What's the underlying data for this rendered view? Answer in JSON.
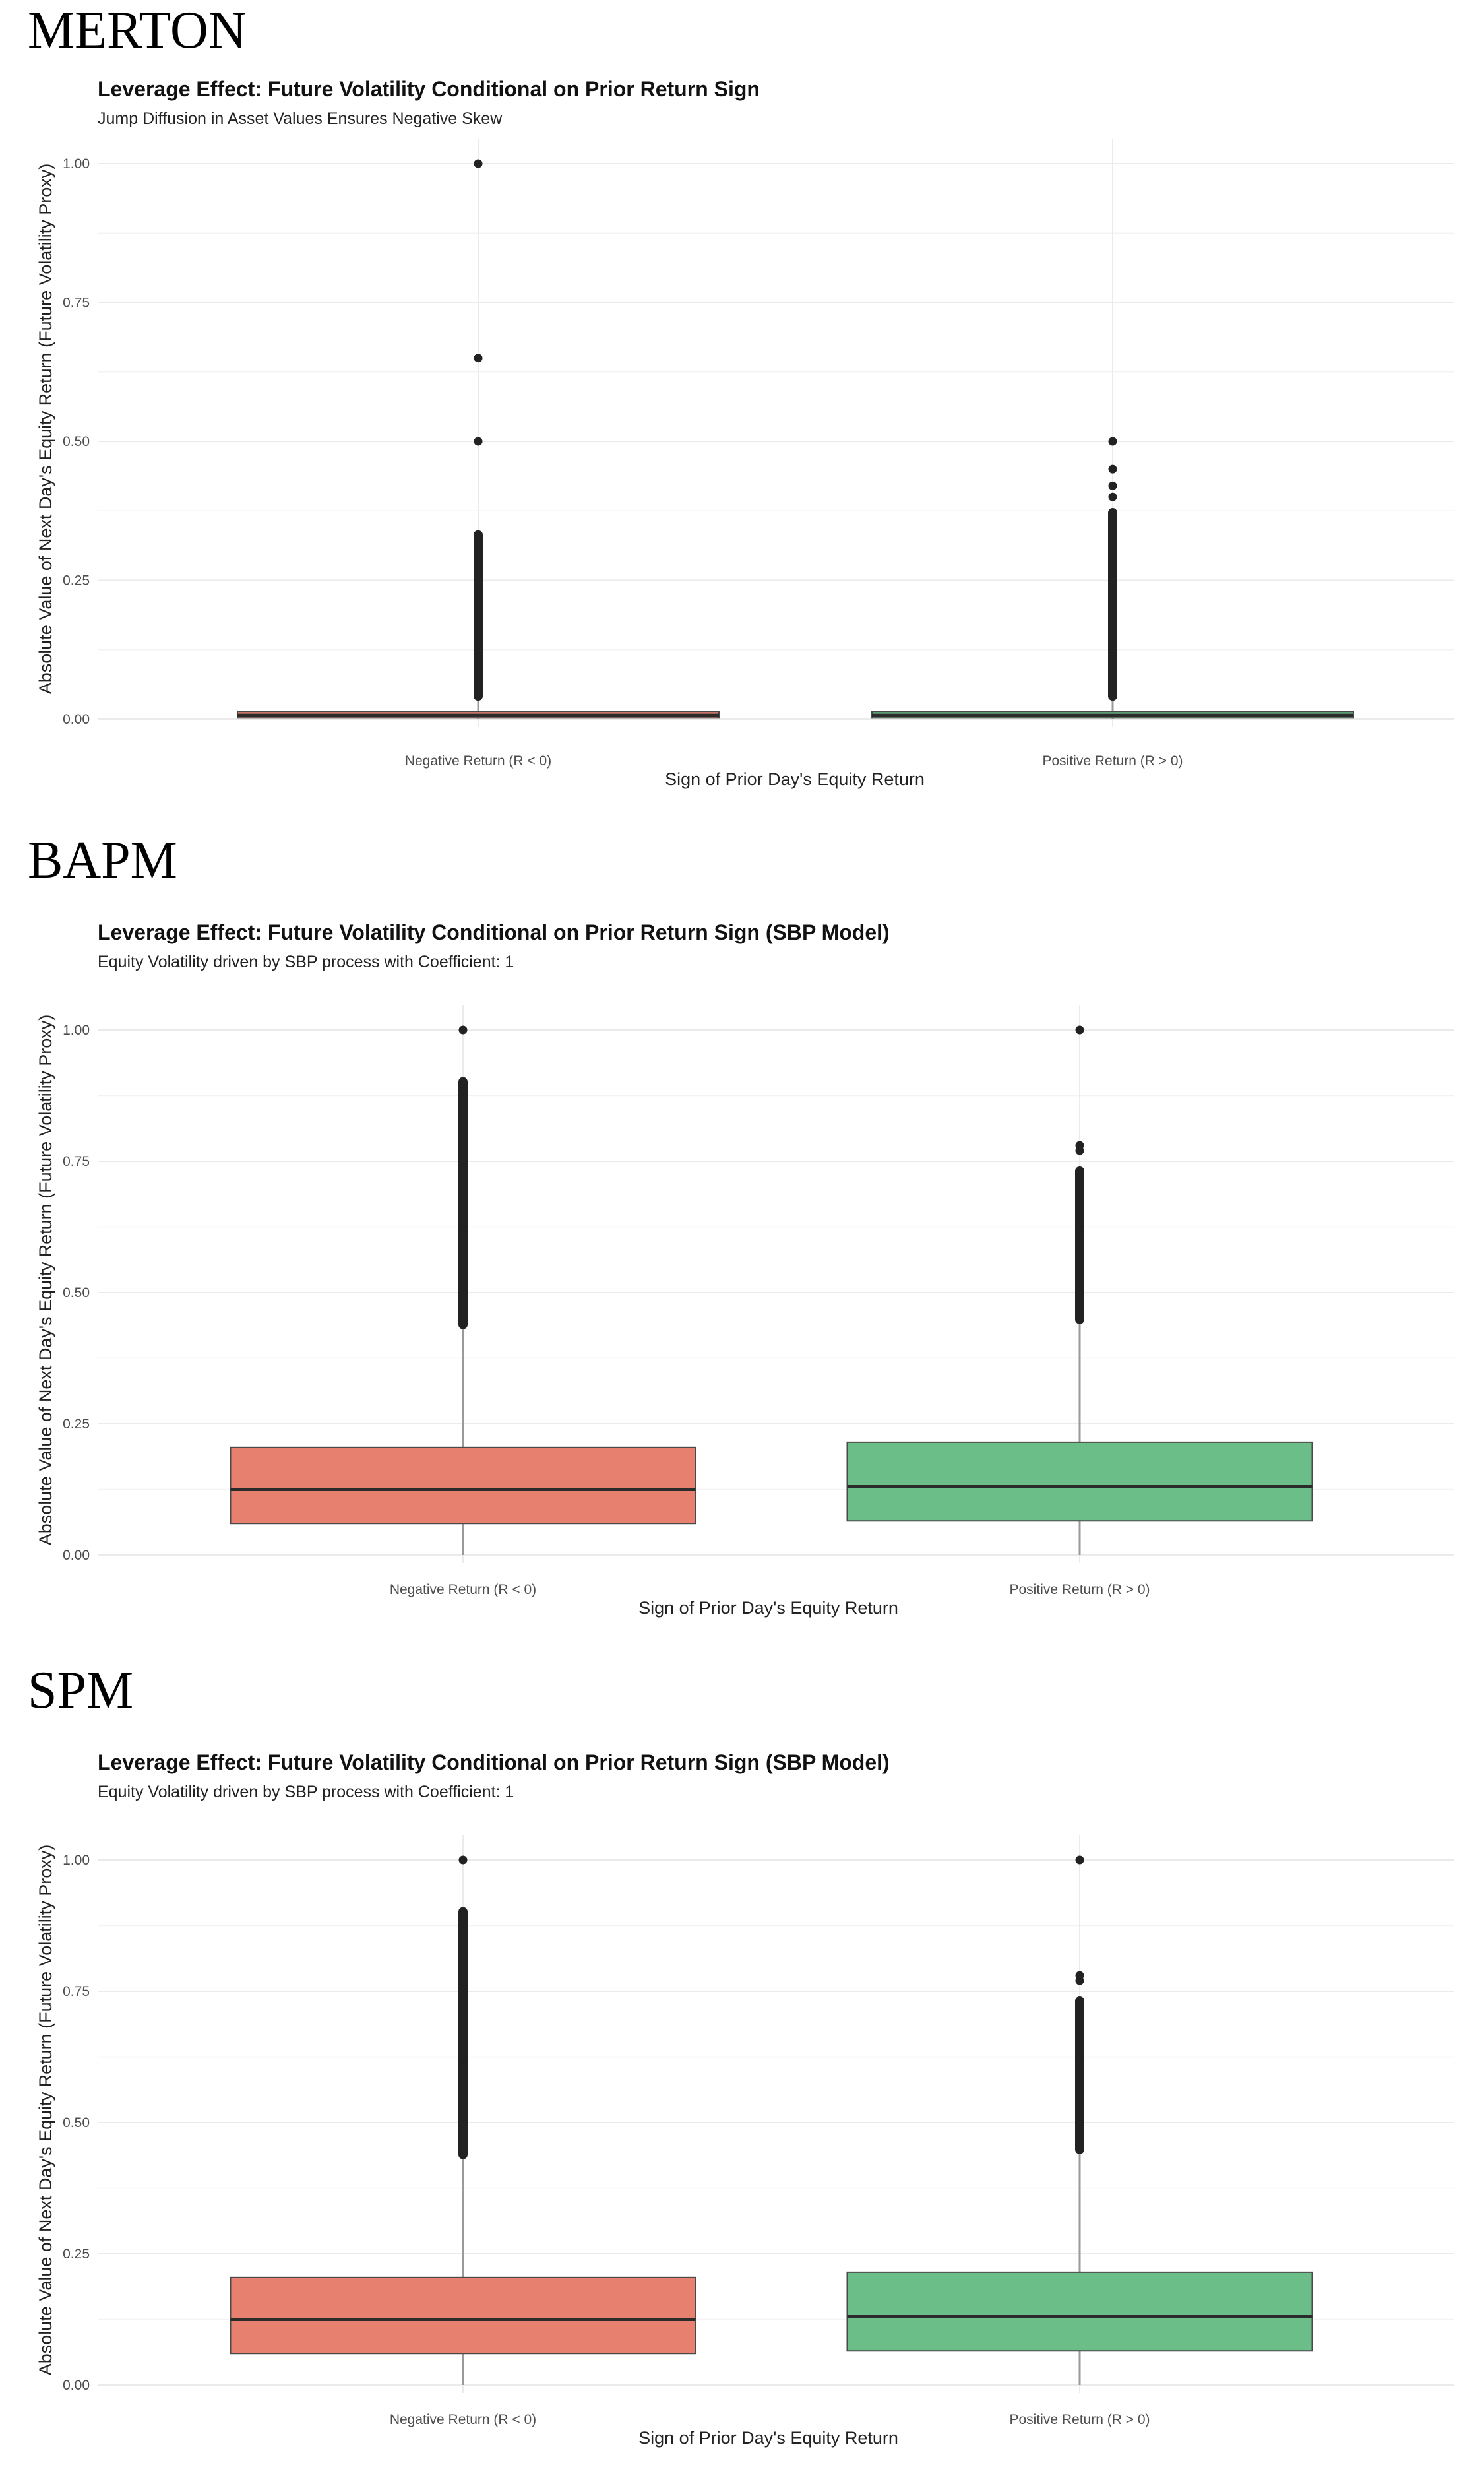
{
  "chart_data": [
    {
      "panel_label": "MERTON",
      "type": "boxplot",
      "title": "Leverage Effect: Future Volatility Conditional on Prior Return Sign",
      "subtitle": "Jump Diffusion in Asset Values Ensures Negative Skew",
      "xlabel": "Sign of Prior Day's Equity Return",
      "ylabel": "Absolute Value of Next Day's Equity Return (Future Volatility Proxy)",
      "ylim": [
        0,
        1
      ],
      "yticks": [
        0,
        0.25,
        0.5,
        0.75,
        1.0
      ],
      "ytick_labels": [
        "0.00",
        "0.25",
        "0.50",
        "0.75",
        "1.00"
      ],
      "categories": [
        "Negative Return (R < 0)",
        "Positive Return (R > 0)"
      ],
      "boxes": [
        {
          "category": "Negative Return (R < 0)",
          "q1": 0.002,
          "median": 0.007,
          "q3": 0.014,
          "whisker_low": 0.0,
          "whisker_high": 0.033,
          "outlier_band": [
            0.033,
            0.34
          ],
          "outliers": [
            0.5,
            0.65,
            1.0
          ],
          "color": "#E8806F"
        },
        {
          "category": "Positive Return (R > 0)",
          "q1": 0.002,
          "median": 0.007,
          "q3": 0.013,
          "whisker_low": 0.0,
          "whisker_high": 0.033,
          "outlier_band": [
            0.033,
            0.38
          ],
          "outliers": [
            0.4,
            0.42,
            0.45,
            0.5
          ],
          "color": "#6CBE89"
        }
      ]
    },
    {
      "panel_label": "BAPM",
      "type": "boxplot",
      "title": "Leverage Effect: Future Volatility Conditional on Prior Return Sign (SBP Model)",
      "subtitle": "Equity Volatility driven by SBP process with Coefficient: 1",
      "xlabel": "Sign of Prior Day's Equity Return",
      "ylabel": "Absolute Value of Next Day's Equity Return (Future Volatility Proxy)",
      "ylim": [
        0,
        1
      ],
      "yticks": [
        0,
        0.25,
        0.5,
        0.75,
        1.0
      ],
      "ytick_labels": [
        "0.00",
        "0.25",
        "0.50",
        "0.75",
        "1.00"
      ],
      "categories": [
        "Negative Return (R < 0)",
        "Positive Return (R > 0)"
      ],
      "boxes": [
        {
          "category": "Negative Return (R < 0)",
          "q1": 0.06,
          "median": 0.125,
          "q3": 0.205,
          "whisker_low": 0.0,
          "whisker_high": 0.43,
          "outlier_band": [
            0.43,
            0.91
          ],
          "outliers": [
            1.0
          ],
          "color": "#E8806F"
        },
        {
          "category": "Positive Return (R > 0)",
          "q1": 0.065,
          "median": 0.13,
          "q3": 0.215,
          "whisker_low": 0.0,
          "whisker_high": 0.44,
          "outlier_band": [
            0.44,
            0.74
          ],
          "outliers": [
            0.77,
            0.78,
            1.0
          ],
          "color": "#6CBE89"
        }
      ]
    },
    {
      "panel_label": "SPM",
      "type": "boxplot",
      "title": "Leverage Effect: Future Volatility Conditional on Prior Return Sign (SBP Model)",
      "subtitle": "Equity Volatility driven by SBP process with Coefficient: 1",
      "xlabel": "Sign of Prior Day's Equity Return",
      "ylabel": "Absolute Value of Next Day's Equity Return (Future Volatility Proxy)",
      "ylim": [
        0,
        1
      ],
      "yticks": [
        0,
        0.25,
        0.5,
        0.75,
        1.0
      ],
      "ytick_labels": [
        "0.00",
        "0.25",
        "0.50",
        "0.75",
        "1.00"
      ],
      "categories": [
        "Negative Return (R < 0)",
        "Positive Return (R > 0)"
      ],
      "boxes": [
        {
          "category": "Negative Return (R < 0)",
          "q1": 0.06,
          "median": 0.125,
          "q3": 0.205,
          "whisker_low": 0.0,
          "whisker_high": 0.43,
          "outlier_band": [
            0.43,
            0.91
          ],
          "outliers": [
            1.0
          ],
          "color": "#E8806F"
        },
        {
          "category": "Positive Return (R > 0)",
          "q1": 0.065,
          "median": 0.13,
          "q3": 0.215,
          "whisker_low": 0.0,
          "whisker_high": 0.44,
          "outlier_band": [
            0.44,
            0.74
          ],
          "outliers": [
            0.77,
            0.78,
            1.0
          ],
          "color": "#6CBE89"
        }
      ]
    }
  ]
}
